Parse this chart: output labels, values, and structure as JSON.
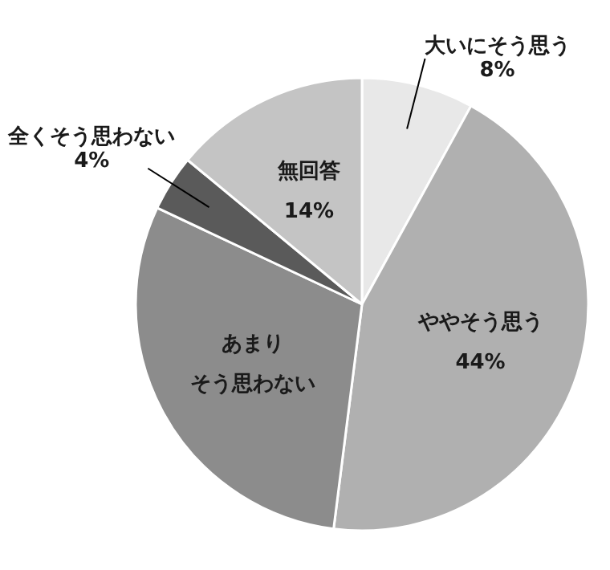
{
  "chart_data": {
    "type": "pie",
    "categories": [
      "大いにそう思う",
      "ややそう思う",
      "あまりそう思わない",
      "全くそう思わない",
      "無回答"
    ],
    "values": [
      8,
      44,
      30,
      4,
      14
    ],
    "value_labels": [
      "8%",
      "44%",
      null,
      "4%",
      "14%"
    ],
    "colors": [
      "#e8e8e8",
      "#b0b0b0",
      "#8c8c8c",
      "#5a5a5a",
      "#c4c4c4"
    ]
  }
}
